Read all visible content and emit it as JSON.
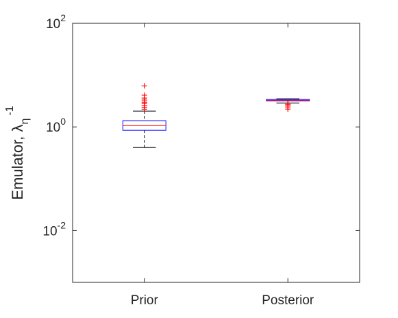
{
  "chart_data": {
    "type": "box",
    "ylabel": "Emulator, λ",
    "ylabel_sub": "η",
    "ylabel_sup": "-1",
    "yscale": "log",
    "ylim": [
      0.001,
      100
    ],
    "yticks": [
      {
        "value": 0.01,
        "label": "10",
        "exponent": "-2"
      },
      {
        "value": 1,
        "label": "10",
        "exponent": "0"
      },
      {
        "value": 100,
        "label": "10",
        "exponent": "2"
      }
    ],
    "categories": [
      "Prior",
      "Posterior"
    ],
    "box_color": "#0000ff",
    "median_color": "#ff0000",
    "whisker_color": "#000000",
    "outlier_color": "#ff0000",
    "boxes": [
      {
        "min": 0.4,
        "q1": 0.86,
        "median": 1.06,
        "q3": 1.32,
        "max": 2.02,
        "outliers": [
          6.2,
          4.1,
          3.6,
          3.3,
          3.0,
          2.8,
          2.6,
          2.4,
          2.2
        ]
      },
      {
        "min": 2.9,
        "q1": 3.19,
        "median": 3.28,
        "q3": 3.39,
        "max": 3.5,
        "outliers": [
          2.74,
          2.57,
          2.42,
          2.21
        ]
      }
    ]
  }
}
